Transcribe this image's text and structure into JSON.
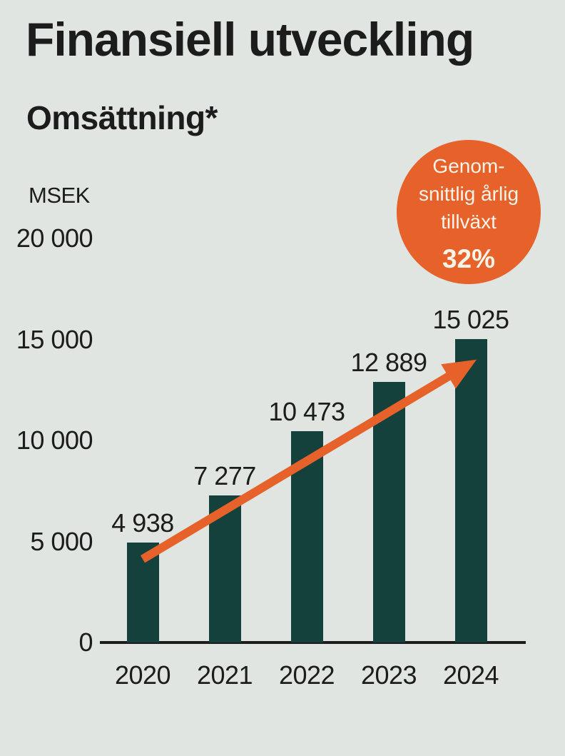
{
  "page": {
    "background_color": "#E0E5E2",
    "text_color": "#1C1C1C"
  },
  "header": {
    "title": "Finansiell utveckling",
    "subtitle": "Omsättning*"
  },
  "badge": {
    "lines": [
      "Genom-",
      "snittlig årlig",
      "tillväxt"
    ],
    "value": "32%",
    "background_color": "#E7622A",
    "text_color": "#F8F4EA"
  },
  "chart_data": {
    "type": "bar",
    "title": "Omsättning*",
    "ylabel": "MSEK",
    "unit_label": "MSEK",
    "categories": [
      "2020",
      "2021",
      "2022",
      "2023",
      "2024"
    ],
    "values": [
      4938,
      7277,
      10473,
      12889,
      15025
    ],
    "value_labels": [
      "4 938",
      "7 277",
      "10 473",
      "12 889",
      "15 025"
    ],
    "y_ticks": [
      {
        "value": 0,
        "label": "0"
      },
      {
        "value": 5000,
        "label": "5 000"
      },
      {
        "value": 10000,
        "label": "10 000"
      },
      {
        "value": 15000,
        "label": "15 000"
      },
      {
        "value": 20000,
        "label": "20 000"
      }
    ],
    "ylim": [
      0,
      20000
    ],
    "grid": false,
    "legend": false,
    "bar_color": "#15413C",
    "axis_color": "#1C1C1C",
    "annotation": {
      "text": "Genomsnittlig årlig tillväxt 32%",
      "shape": "circle",
      "color": "#E7622A"
    },
    "trend_arrow": {
      "present": true,
      "color": "#E7622A",
      "from_category": "2020",
      "to_category": "2024",
      "direction": "up-right"
    }
  }
}
